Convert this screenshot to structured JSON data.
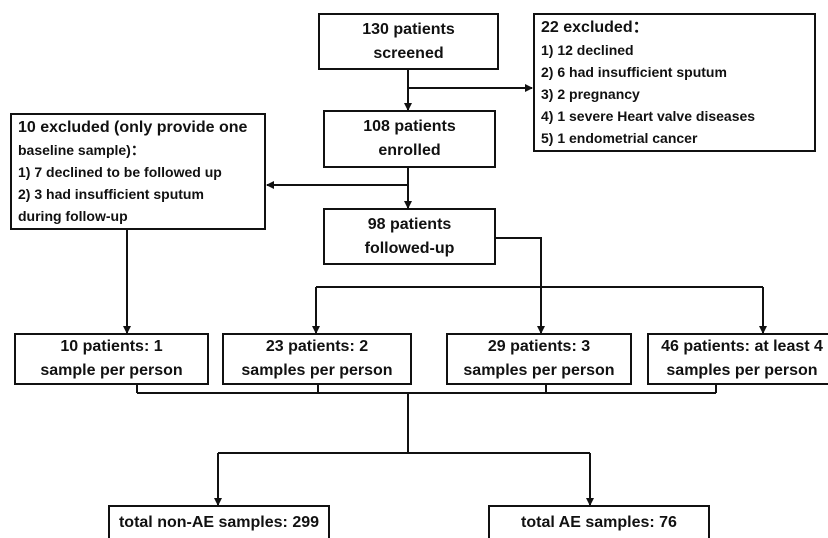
{
  "nodes": [
    {
      "lines": [
        "130 patients",
        "screened"
      ]
    },
    {
      "lines": [
        "22 excluded：",
        "1) 12 declined",
        "2) 6 had insufficient sputum",
        "3) 2 pregnancy",
        "4) 1 severe Heart valve diseases",
        "5) 1 endometrial cancer"
      ]
    },
    {
      "lines": [
        "108 patients",
        "enrolled"
      ]
    },
    {
      "lines": [
        "10 excluded (only provide one",
        "baseline sample)：",
        "1) 7 declined to be followed up",
        "2) 3 had insufficient sputum",
        "during follow-up"
      ]
    },
    {
      "lines": [
        "98 patients",
        "followed-up"
      ]
    },
    {
      "lines": [
        "10 patients: 1",
        "sample per person"
      ]
    },
    {
      "lines": [
        "23 patients: 2",
        "samples per person"
      ]
    },
    {
      "lines": [
        "29 patients: 3",
        "samples per person"
      ]
    },
    {
      "lines": [
        "46 patients: at least 4",
        "samples per person"
      ]
    },
    {
      "lines": [
        "total non-AE samples: 299"
      ]
    },
    {
      "lines": [
        "total AE samples: 76"
      ]
    }
  ]
}
